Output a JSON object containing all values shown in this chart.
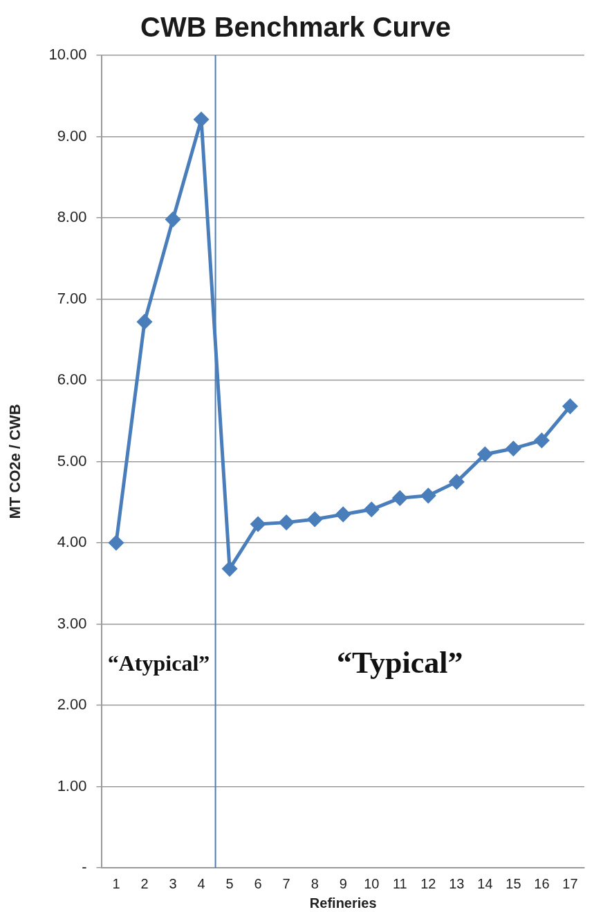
{
  "chart_data": {
    "type": "line",
    "title": "CWB Benchmark Curve",
    "xlabel": "Refineries",
    "ylabel": "MT CO2e / CWB",
    "x": [
      1,
      2,
      3,
      4,
      5,
      6,
      7,
      8,
      9,
      10,
      11,
      12,
      13,
      14,
      15,
      16,
      17
    ],
    "xlim": [
      0.5,
      17.5
    ],
    "xticks": [
      1,
      2,
      3,
      4,
      5,
      6,
      7,
      8,
      9,
      10,
      11,
      12,
      13,
      14,
      15,
      16,
      17
    ],
    "ylim": [
      0,
      10
    ],
    "yticks": [
      {
        "value": 0,
        "label": "-"
      },
      {
        "value": 1,
        "label": "1.00"
      },
      {
        "value": 2,
        "label": "2.00"
      },
      {
        "value": 3,
        "label": "3.00"
      },
      {
        "value": 4,
        "label": "4.00"
      },
      {
        "value": 5,
        "label": "5.00"
      },
      {
        "value": 6,
        "label": "6.00"
      },
      {
        "value": 7,
        "label": "7.00"
      },
      {
        "value": 8,
        "label": "8.00"
      },
      {
        "value": 9,
        "label": "9.00"
      },
      {
        "value": 10,
        "label": "10.00"
      }
    ],
    "series": [
      {
        "color": "#4a7ebb",
        "values": [
          4.0,
          6.72,
          7.98,
          9.21,
          3.68,
          4.23,
          4.25,
          4.29,
          4.35,
          4.41,
          4.55,
          4.58,
          4.75,
          5.09,
          5.16,
          5.26,
          5.68
        ]
      }
    ],
    "ref_lines": [
      {
        "axis": "x",
        "value": 4.5,
        "color": "#4a7ebb"
      }
    ],
    "annotations": [
      "“Atypical”",
      "“Typical”"
    ],
    "grid": "y",
    "marker": "diamond",
    "line_style": "solid"
  }
}
